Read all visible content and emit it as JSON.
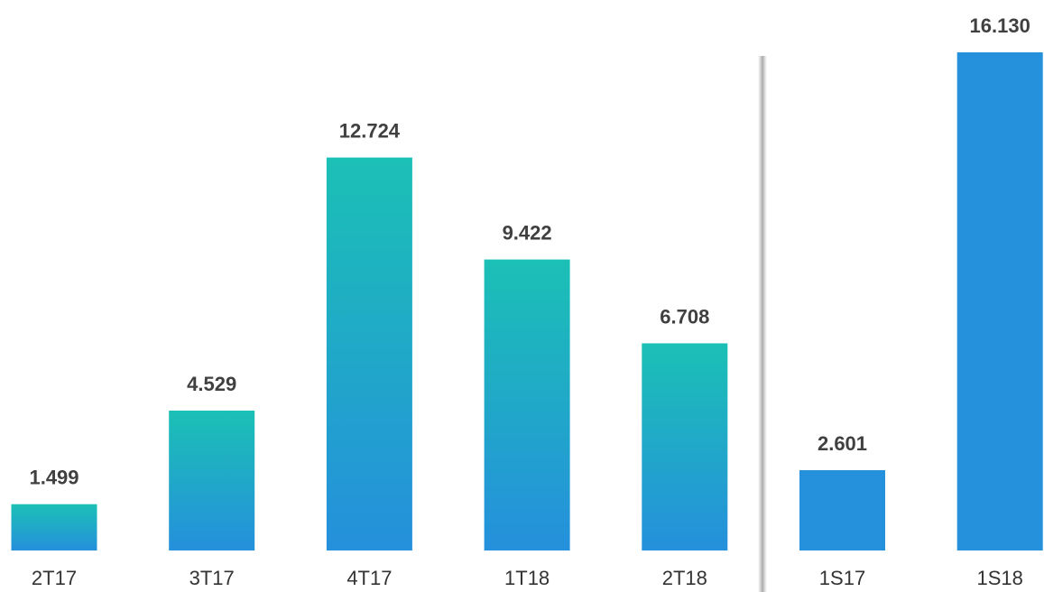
{
  "chart_data": {
    "type": "bar",
    "categories": [
      "2T17",
      "3T17",
      "4T17",
      "1T18",
      "2T18",
      "1S17",
      "1S18"
    ],
    "values": [
      1499,
      4529,
      12724,
      9422,
      6708,
      2601,
      16130
    ],
    "value_labels": [
      "1.499",
      "4.529",
      "12.724",
      "9.422",
      "6.708",
      "2.601",
      "16.130"
    ],
    "colors": [
      [
        "#1bc0b5",
        "#2590dc"
      ],
      [
        "#1bc0b5",
        "#2590dc"
      ],
      [
        "#1bc0b5",
        "#2590dc"
      ],
      [
        "#1bc0b5",
        "#2590dc"
      ],
      [
        "#1bc0b5",
        "#2590dc"
      ],
      "#2590dc",
      "#2590dc"
    ]
  }
}
